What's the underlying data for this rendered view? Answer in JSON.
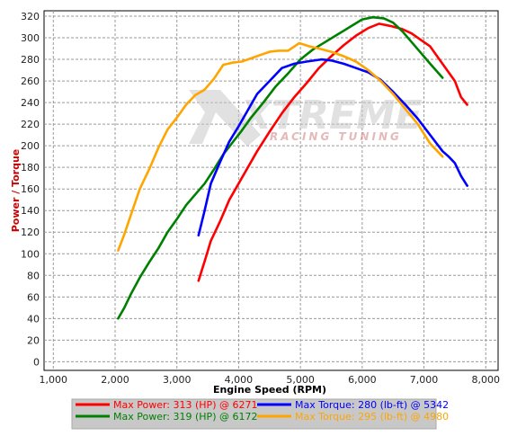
{
  "chart_data": {
    "type": "line",
    "title": "",
    "xlabel": "Engine Speed (RPM)",
    "ylabel": "Power / Torque",
    "xlim": [
      850,
      8200
    ],
    "ylim": [
      -8,
      325
    ],
    "x_ticks": [
      1000,
      2000,
      3000,
      4000,
      5000,
      6000,
      7000,
      8000
    ],
    "x_tick_labels": [
      "1,000",
      "2,000",
      "3,000",
      "4,000",
      "5,000",
      "6,000",
      "7,000",
      "8,000"
    ],
    "y_ticks": [
      0,
      20,
      40,
      60,
      80,
      100,
      120,
      140,
      160,
      180,
      200,
      220,
      240,
      260,
      280,
      300,
      320
    ],
    "grid": true,
    "legend_position": "bottom",
    "series": [
      {
        "label": "Max Power: 313 (HP) @ 6271",
        "color": "#ff0000",
        "x": [
          3350,
          3450,
          3550,
          3700,
          3850,
          4000,
          4150,
          4300,
          4500,
          4700,
          4900,
          5100,
          5300,
          5500,
          5700,
          5900,
          6100,
          6271,
          6450,
          6650,
          6800,
          6950,
          7100,
          7250,
          7400,
          7500,
          7600,
          7700
        ],
        "y": [
          75,
          93,
          112,
          130,
          150,
          165,
          180,
          195,
          213,
          230,
          245,
          258,
          272,
          283,
          293,
          302,
          309,
          313,
          311,
          308,
          304,
          298,
          292,
          280,
          268,
          260,
          245,
          238
        ]
      },
      {
        "label": "Max Power: 319 (HP) @ 6172",
        "color": "#008000",
        "x": [
          2050,
          2150,
          2250,
          2400,
          2550,
          2700,
          2850,
          3000,
          3150,
          3300,
          3450,
          3600,
          3750,
          3900,
          4050,
          4200,
          4400,
          4600,
          4800,
          5000,
          5200,
          5400,
          5600,
          5800,
          6000,
          6172,
          6350,
          6500,
          6650,
          6800,
          6950,
          7100,
          7300
        ],
        "y": [
          40,
          50,
          62,
          78,
          92,
          105,
          120,
          132,
          145,
          155,
          165,
          178,
          192,
          203,
          214,
          226,
          240,
          255,
          267,
          280,
          289,
          296,
          303,
          310,
          317,
          319,
          318,
          314,
          306,
          296,
          286,
          276,
          263
        ]
      },
      {
        "label": "Max Torque: 280 (lb-ft) @ 5342",
        "color": "#0000ff",
        "x": [
          3350,
          3450,
          3550,
          3700,
          3850,
          4000,
          4150,
          4300,
          4500,
          4700,
          4900,
          5100,
          5342,
          5500,
          5700,
          5900,
          6100,
          6300,
          6500,
          6700,
          6900,
          7100,
          7300,
          7400,
          7500,
          7600,
          7700
        ],
        "y": [
          117,
          140,
          165,
          185,
          204,
          218,
          233,
          248,
          260,
          272,
          276,
          278,
          280,
          279,
          276,
          272,
          268,
          261,
          250,
          238,
          225,
          210,
          195,
          190,
          184,
          172,
          163
        ]
      },
      {
        "label": "Max Torque: 295 (lb-ft) @ 4980",
        "color": "#ffa500",
        "x": [
          2050,
          2150,
          2250,
          2400,
          2550,
          2700,
          2850,
          3000,
          3150,
          3300,
          3450,
          3600,
          3750,
          3900,
          4050,
          4200,
          4350,
          4500,
          4650,
          4800,
          4980,
          5150,
          5300,
          5500,
          5700,
          5900,
          6100,
          6300,
          6500,
          6700,
          6900,
          7100,
          7300
        ],
        "y": [
          103,
          118,
          135,
          160,
          178,
          198,
          215,
          226,
          238,
          247,
          252,
          262,
          275,
          277,
          278,
          281,
          284,
          287,
          288,
          288,
          295,
          292,
          290,
          287,
          283,
          278,
          270,
          260,
          248,
          234,
          220,
          202,
          190
        ]
      }
    ]
  },
  "watermark": {
    "brand": "XTREME",
    "tagline": "RACING TUNING"
  },
  "legend": {
    "items": [
      {
        "text": "Max Power: 313 (HP) @ 6271",
        "color": "#ff0000"
      },
      {
        "text": "Max Torque: 280 (lb-ft) @ 5342",
        "color": "#0000ff"
      },
      {
        "text": "Max Power: 319 (HP) @ 6172",
        "color": "#008000"
      },
      {
        "text": "Max Torque: 295 (lb-ft) @ 4980",
        "color": "#ffa500"
      }
    ]
  },
  "colors": {
    "ylabel": "#cc0000",
    "xlabel": "#000000",
    "grid": "#9a9a9a",
    "legend_bg": "#c8c8c8",
    "watermark": "#c8c8c8"
  }
}
